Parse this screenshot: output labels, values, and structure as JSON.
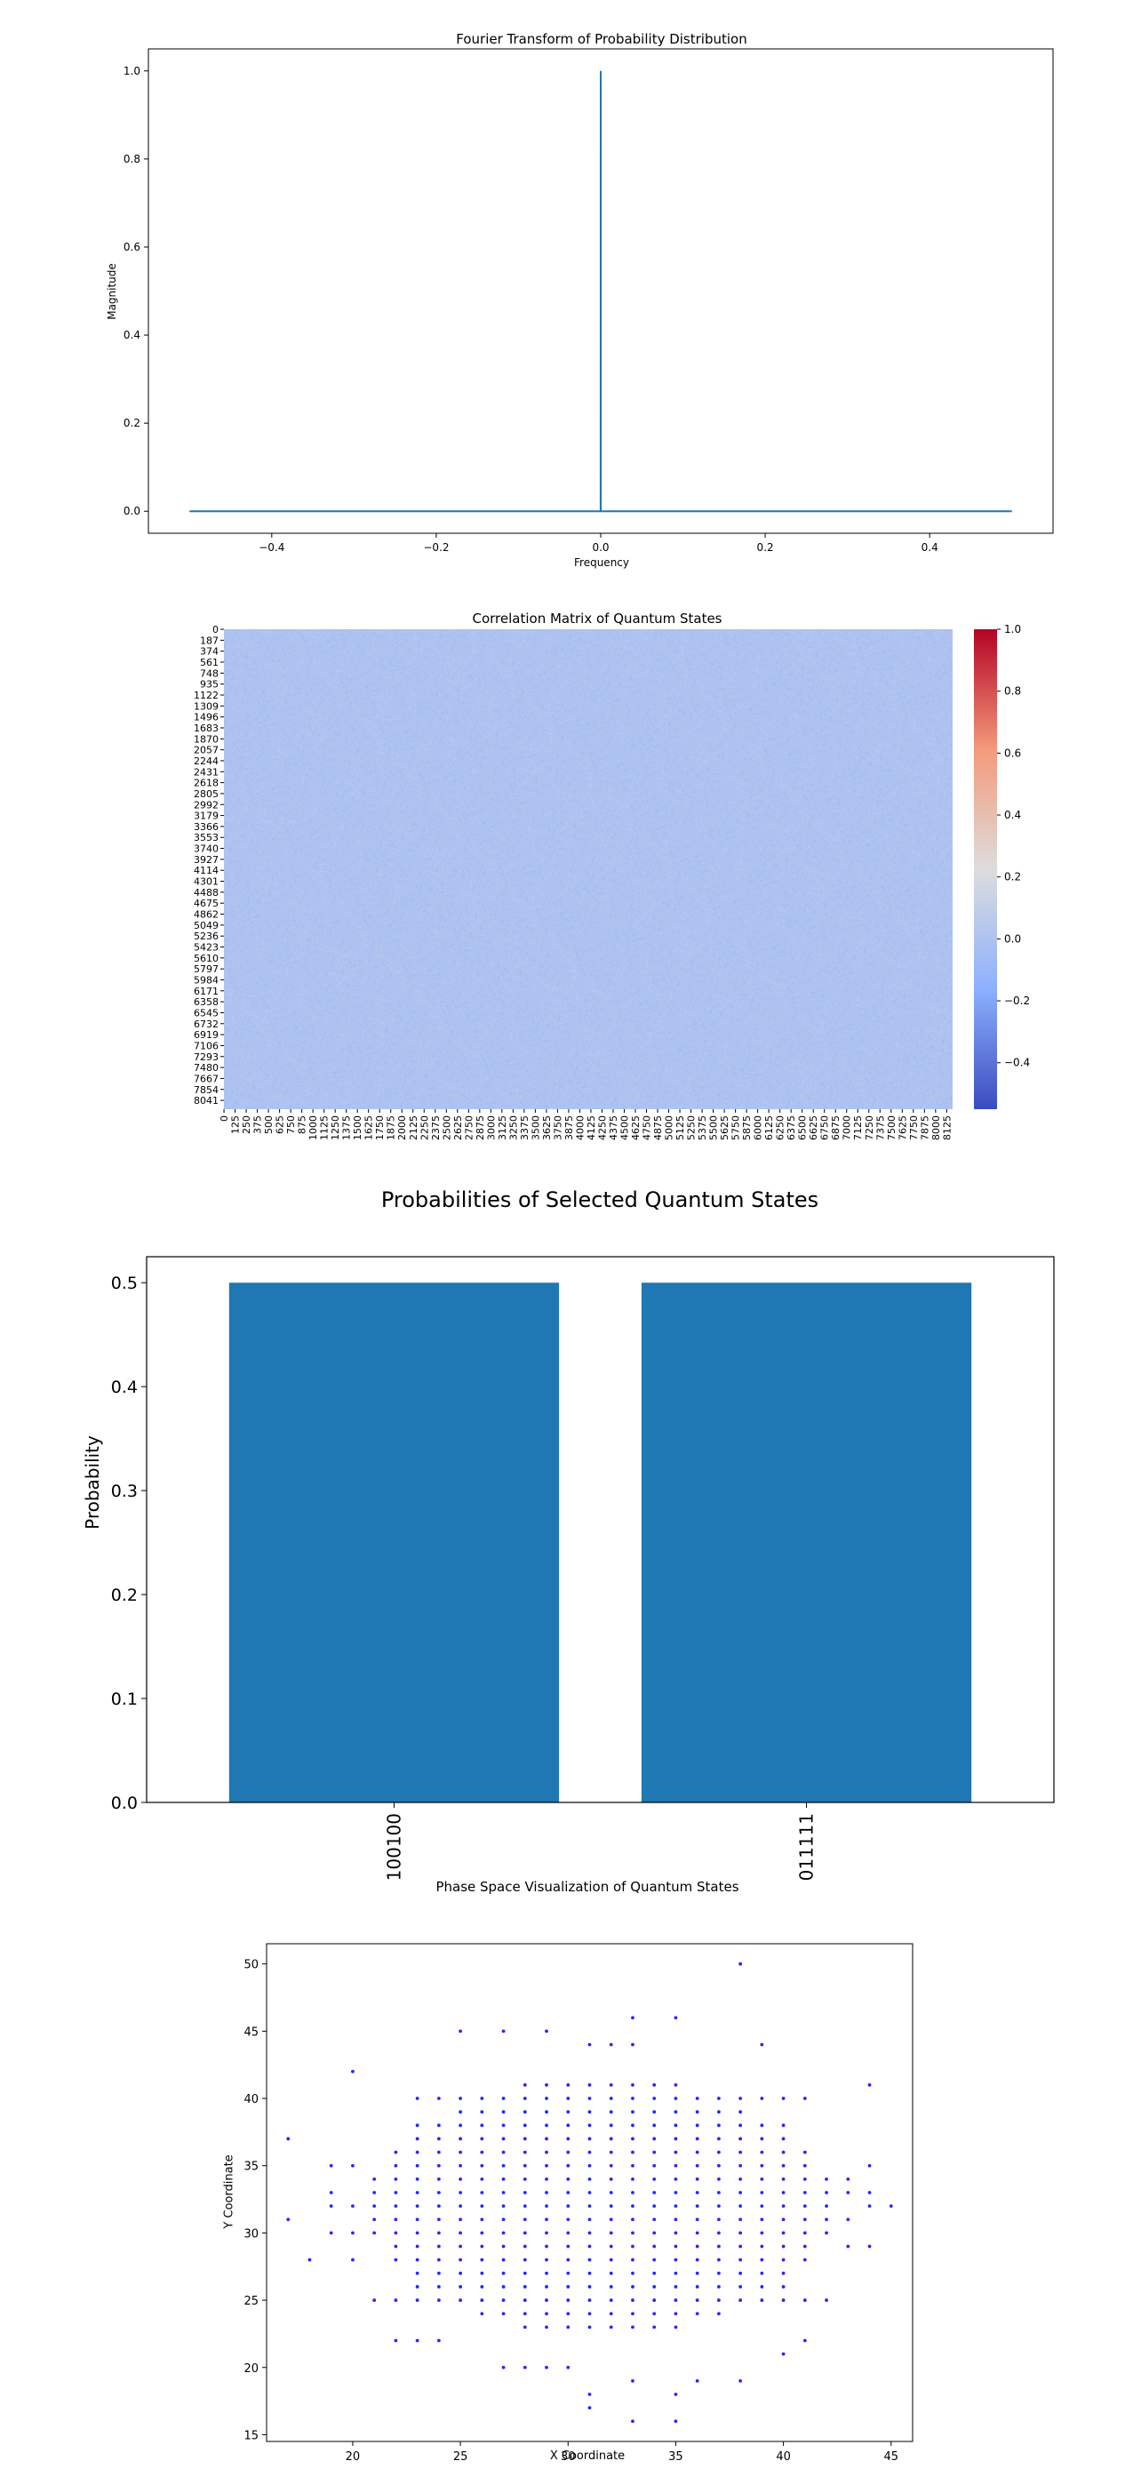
{
  "chart_data": [
    {
      "type": "line",
      "title": "Fourier Transform of Probability Distribution",
      "xlabel": "Frequency",
      "ylabel": "Magnitude",
      "xlim": [
        -0.55,
        0.55
      ],
      "ylim": [
        -0.05,
        1.05
      ],
      "x_ticks": [
        -0.4,
        -0.2,
        0.0,
        0.2,
        0.4
      ],
      "x_tick_labels": [
        "−0.4",
        "−0.2",
        "0.0",
        "0.2",
        "0.4"
      ],
      "y_ticks": [
        0.0,
        0.2,
        0.4,
        0.6,
        0.8,
        1.0
      ],
      "y_tick_labels": [
        "0.0",
        "0.2",
        "0.4",
        "0.6",
        "0.8",
        "1.0"
      ],
      "series": [
        {
          "color": "#1f77b4",
          "x": [
            -0.5,
            -0.0001,
            0.0,
            0.0001,
            0.5
          ],
          "y": [
            0.0,
            0.0,
            1.0,
            0.0,
            0.0
          ]
        }
      ],
      "grid": false
    },
    {
      "type": "heatmap",
      "title": "Correlation Matrix of Quantum States",
      "size": 8192,
      "y_tick_labels": [
        "0",
        "187",
        "374",
        "561",
        "748",
        "935",
        "1122",
        "1309",
        "1496",
        "1683",
        "1870",
        "2057",
        "2244",
        "2431",
        "2618",
        "2805",
        "2992",
        "3179",
        "3366",
        "3553",
        "3740",
        "3927",
        "4114",
        "4301",
        "4488",
        "4675",
        "4862",
        "5049",
        "5236",
        "5423",
        "5610",
        "5797",
        "5984",
        "6171",
        "6358",
        "6545",
        "6732",
        "6919",
        "7106",
        "7293",
        "7480",
        "7667",
        "7854",
        "8041"
      ],
      "x_tick_labels": [
        "0",
        "125",
        "250",
        "375",
        "500",
        "625",
        "750",
        "875",
        "1000",
        "1125",
        "1250",
        "1375",
        "1500",
        "1625",
        "1750",
        "1875",
        "2000",
        "2125",
        "2250",
        "2375",
        "2500",
        "2625",
        "2750",
        "2875",
        "3000",
        "3125",
        "3250",
        "3375",
        "3500",
        "3625",
        "3750",
        "3875",
        "4000",
        "4125",
        "4250",
        "4375",
        "4500",
        "4625",
        "4750",
        "4875",
        "5000",
        "5125",
        "5250",
        "5375",
        "5500",
        "5625",
        "5750",
        "5875",
        "6000",
        "6125",
        "6250",
        "6375",
        "6500",
        "6625",
        "6750",
        "6875",
        "7000",
        "7125",
        "7250",
        "7375",
        "7500",
        "7625",
        "7750",
        "7875",
        "8000",
        "8125"
      ],
      "colormap": "coolwarm",
      "vmin": -0.55,
      "vmax": 1.0,
      "typical_value": 0.0,
      "colorbar_ticks": [
        -0.4,
        -0.2,
        0.0,
        0.2,
        0.4,
        0.6,
        0.8,
        1.0
      ],
      "colorbar_tick_labels": [
        "−0.4",
        "−0.2",
        "0.0",
        "0.2",
        "0.4",
        "0.6",
        "0.8",
        "1.0"
      ]
    },
    {
      "type": "bar",
      "title": "Probabilities of Selected Quantum States",
      "xlabel": "",
      "ylabel": "Probability",
      "categories": [
        "100100",
        "011111"
      ],
      "values": [
        0.5,
        0.5
      ],
      "ylim": [
        0,
        0.525
      ],
      "y_ticks": [
        0.0,
        0.1,
        0.2,
        0.3,
        0.4,
        0.5
      ],
      "y_tick_labels": [
        "0.0",
        "0.1",
        "0.2",
        "0.3",
        "0.4",
        "0.5"
      ],
      "color": "#1f77b4"
    },
    {
      "type": "scatter",
      "title": "Phase Space Visualization of Quantum States",
      "xlabel": "X Coordinate",
      "ylabel": "Y Coordinate",
      "xlim": [
        16,
        46
      ],
      "ylim": [
        14.5,
        51.5
      ],
      "x_ticks": [
        20,
        25,
        30,
        35,
        40,
        45
      ],
      "y_ticks": [
        15,
        20,
        25,
        30,
        35,
        40,
        45,
        50
      ],
      "color": "#0000ff",
      "points": [
        [
          17,
          31
        ],
        [
          17,
          37
        ],
        [
          18,
          28
        ],
        [
          19,
          30
        ],
        [
          19,
          32
        ],
        [
          19,
          33
        ],
        [
          19,
          35
        ],
        [
          20,
          28
        ],
        [
          20,
          30
        ],
        [
          20,
          32
        ],
        [
          20,
          35
        ],
        [
          20,
          42
        ],
        [
          38,
          50
        ],
        [
          33,
          46
        ],
        [
          35,
          46
        ],
        [
          25,
          45
        ],
        [
          27,
          45
        ],
        [
          29,
          45
        ],
        [
          39,
          44
        ],
        [
          31,
          44
        ],
        [
          32,
          44
        ],
        [
          33,
          44
        ],
        [
          44,
          41
        ],
        [
          44,
          35
        ],
        [
          44,
          33
        ],
        [
          44,
          32
        ],
        [
          44,
          29
        ],
        [
          45,
          32
        ],
        [
          43,
          34
        ],
        [
          43,
          33
        ],
        [
          43,
          31
        ],
        [
          43,
          29
        ],
        [
          42,
          25
        ],
        [
          31,
          18
        ],
        [
          31,
          17
        ],
        [
          33,
          16
        ],
        [
          35,
          16
        ],
        [
          35,
          18
        ],
        [
          33,
          19
        ],
        [
          36,
          19
        ],
        [
          38,
          19
        ],
        [
          27,
          20
        ],
        [
          28,
          20
        ],
        [
          29,
          20
        ],
        [
          30,
          20
        ],
        [
          40,
          21
        ],
        [
          41,
          22
        ],
        [
          22,
          22
        ],
        [
          23,
          22
        ],
        [
          24,
          22
        ],
        [
          33,
          25
        ],
        [
          34,
          25
        ],
        [
          35,
          25
        ],
        [
          36,
          25
        ],
        [
          37,
          25
        ],
        [
          38,
          25
        ],
        [
          39,
          25
        ],
        [
          40,
          25
        ],
        [
          41,
          25
        ],
        [
          21,
          25
        ],
        [
          22,
          25
        ],
        [
          23,
          25
        ],
        [
          24,
          25
        ],
        [
          25,
          25
        ],
        [
          26,
          25
        ],
        [
          27,
          25
        ],
        [
          28,
          25
        ],
        [
          29,
          25
        ],
        [
          30,
          25
        ],
        [
          31,
          25
        ],
        [
          32,
          25
        ],
        [
          32,
          40
        ],
        [
          33,
          40
        ],
        [
          34,
          40
        ],
        [
          35,
          40
        ],
        [
          36,
          40
        ],
        [
          37,
          40
        ],
        [
          38,
          40
        ],
        [
          39,
          40
        ],
        [
          40,
          40
        ],
        [
          41,
          40
        ],
        [
          23,
          40
        ],
        [
          24,
          40
        ],
        [
          25,
          40
        ],
        [
          26,
          40
        ],
        [
          27,
          40
        ],
        [
          28,
          40
        ],
        [
          29,
          40
        ],
        [
          30,
          40
        ],
        [
          31,
          40
        ]
      ],
      "cloud": {
        "cx": 31.5,
        "cy": 32,
        "rx": 11,
        "ry": 9.5
      }
    }
  ]
}
